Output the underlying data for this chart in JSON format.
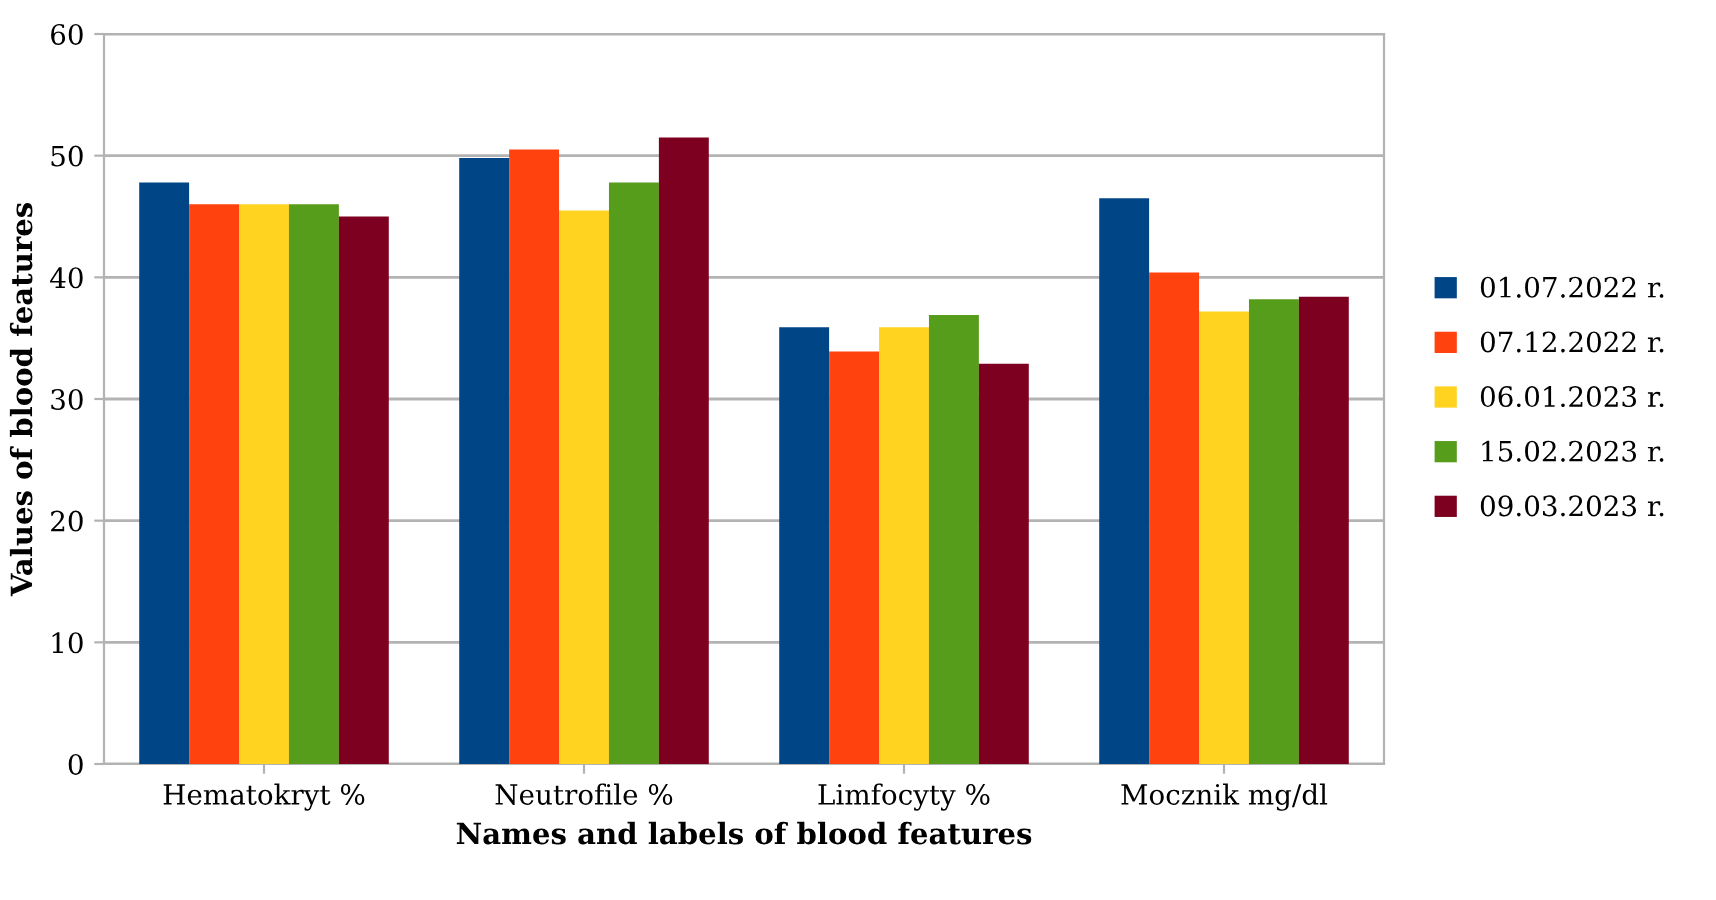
{
  "chart_data": {
    "type": "bar",
    "xlabel": "Names and labels of blood features",
    "ylabel": "Values of blood features",
    "categories": [
      "Hematokryt %",
      "Neutrofile %",
      "Limfocyty %",
      "Mocznik mg/dl"
    ],
    "series": [
      {
        "name": "01.07.2022 r.",
        "color": "#004586",
        "values": [
          47.8,
          49.8,
          35.9,
          46.5
        ]
      },
      {
        "name": "07.12.2022 r.",
        "color": "#ff420e",
        "values": [
          46.0,
          50.5,
          33.9,
          40.4
        ]
      },
      {
        "name": "06.01.2023 r.",
        "color": "#ffd320",
        "values": [
          46.0,
          45.5,
          35.9,
          37.2
        ]
      },
      {
        "name": "15.02.2023 r.",
        "color": "#579d1c",
        "values": [
          46.0,
          47.8,
          36.9,
          38.2
        ]
      },
      {
        "name": "09.03.2023 r.",
        "color": "#7e0021",
        "values": [
          45.0,
          51.5,
          32.9,
          38.4
        ]
      }
    ],
    "ylim": [
      0,
      60
    ],
    "yticks": [
      0,
      10,
      20,
      30,
      40,
      50,
      60
    ],
    "grid": "y",
    "legend": "right"
  }
}
